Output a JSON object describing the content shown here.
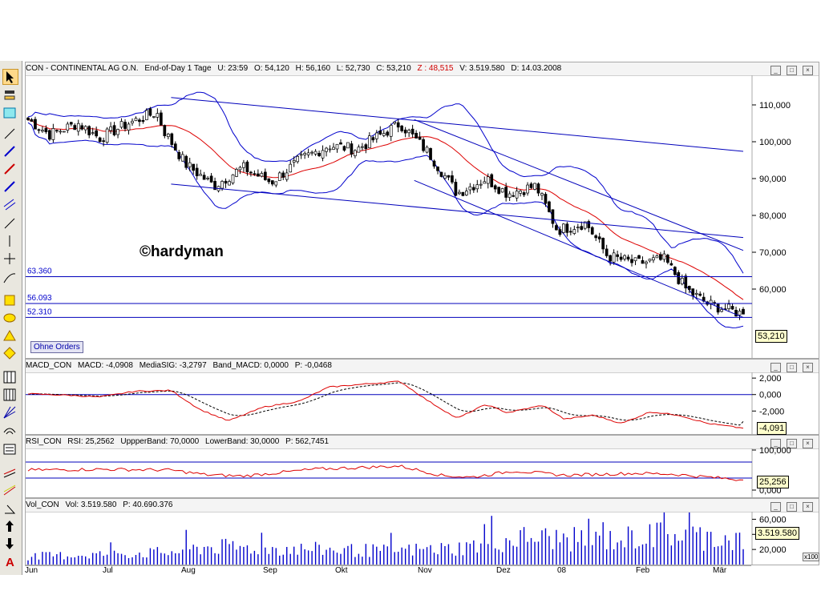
{
  "price_pane": {
    "title": {
      "symbol": "CON - CONTINENTAL AG O.N.",
      "period": "End-of-Day 1 Tage",
      "time": "U: 23:59",
      "open": "O: 54,120",
      "high": "H: 56,160",
      "low": "L: 52,730",
      "close": "C: 53,210",
      "z": "Z : 48,515",
      "volume": "V: 3.519.580",
      "date": "D: 14.03.2008"
    },
    "watermark": "©hardyman",
    "order_button": "Ohne Orders",
    "last_value": "53,210",
    "level_labels": [
      "63.360",
      "56.093",
      "52.310"
    ],
    "y_ticks": [
      "110,000",
      "100,000",
      "90,000",
      "80,000",
      "70,000",
      "60,000"
    ]
  },
  "macd_pane": {
    "title": {
      "name": "MACD_CON",
      "macd": "MACD: -4,0908",
      "signal": "MediaSIG: -3,2797",
      "band": "Band_MACD: 0,0000",
      "p": "P: -0,0468"
    },
    "last_value": "-4,091",
    "y_ticks": [
      "2,000",
      "0,000",
      "-2,000"
    ]
  },
  "rsi_pane": {
    "title": {
      "name": "RSI_CON",
      "rsi": "RSI: 25,2562",
      "upper": "UppperBand: 70,0000",
      "lower": "LowerBand: 30,0000",
      "p": "P: 562,7451"
    },
    "last_value": "25,256",
    "y_ticks": [
      "100,000",
      "0,000"
    ]
  },
  "vol_pane": {
    "title": {
      "name": "Vol_CON",
      "vol": "Vol: 3.519.580",
      "p": "P: 40.690.376"
    },
    "last_value": "3.519.580",
    "y_ticks": [
      "60,000",
      "40,000",
      "20,000"
    ],
    "scale_note": "x100"
  },
  "x_labels": [
    "Jun",
    "Jul",
    "Aug",
    "Sep",
    "Okt",
    "Nov",
    "Dez",
    "08",
    "Feb",
    "Mär"
  ],
  "colors": {
    "candle": "#000000",
    "ma": "#dd0000",
    "bands": "#0000cc",
    "trendlines": "#0000bb",
    "macd": "#dd0000",
    "signal": "#000000",
    "rsi": "#dd0000",
    "volume": "#0000cc"
  },
  "chart_data": [
    {
      "type": "candlestick",
      "title": "CON - CONTINENTAL AG O.N.",
      "x_range": [
        "2007-06",
        "2008-03-14"
      ],
      "ylim": [
        45,
        115
      ],
      "last_close": 53.21,
      "horizontal_levels": [
        63.36,
        56.093,
        52.31
      ],
      "anchors": [
        {
          "x": 0,
          "close": 106
        },
        {
          "x": 0.03,
          "close": 102
        },
        {
          "x": 0.07,
          "close": 105
        },
        {
          "x": 0.1,
          "close": 101
        },
        {
          "x": 0.14,
          "close": 105
        },
        {
          "x": 0.18,
          "close": 108
        },
        {
          "x": 0.19,
          "close": 103
        },
        {
          "x": 0.22,
          "close": 94
        },
        {
          "x": 0.26,
          "close": 88
        },
        {
          "x": 0.3,
          "close": 93
        },
        {
          "x": 0.34,
          "close": 89
        },
        {
          "x": 0.38,
          "close": 95
        },
        {
          "x": 0.42,
          "close": 99
        },
        {
          "x": 0.46,
          "close": 98
        },
        {
          "x": 0.52,
          "close": 105
        },
        {
          "x": 0.56,
          "close": 97
        },
        {
          "x": 0.6,
          "close": 86
        },
        {
          "x": 0.64,
          "close": 90
        },
        {
          "x": 0.67,
          "close": 86
        },
        {
          "x": 0.71,
          "close": 88
        },
        {
          "x": 0.74,
          "close": 76
        },
        {
          "x": 0.78,
          "close": 78
        },
        {
          "x": 0.81,
          "close": 69
        },
        {
          "x": 0.85,
          "close": 67
        },
        {
          "x": 0.89,
          "close": 68
        },
        {
          "x": 0.92,
          "close": 60
        },
        {
          "x": 0.95,
          "close": 56
        },
        {
          "x": 1,
          "close": 53.21
        }
      ]
    },
    {
      "type": "line",
      "title": "MACD_CON",
      "series": [
        {
          "name": "MACD"
        },
        {
          "name": "MediaSIG"
        }
      ],
      "ylim": [
        -4.5,
        2.5
      ],
      "last_macd": -4.0908,
      "last_signal": -3.2797,
      "anchors": [
        {
          "x": 0,
          "macd": 0.1
        },
        {
          "x": 0.06,
          "macd": -0.1
        },
        {
          "x": 0.1,
          "macd": -0.3
        },
        {
          "x": 0.15,
          "macd": 0.4
        },
        {
          "x": 0.2,
          "macd": 0.5
        },
        {
          "x": 0.24,
          "macd": -1.8
        },
        {
          "x": 0.28,
          "macd": -3.2
        },
        {
          "x": 0.33,
          "macd": -1.5
        },
        {
          "x": 0.38,
          "macd": -0.8
        },
        {
          "x": 0.42,
          "macd": 0.9
        },
        {
          "x": 0.46,
          "macd": 1.2
        },
        {
          "x": 0.52,
          "macd": 1.6
        },
        {
          "x": 0.56,
          "macd": -0.8
        },
        {
          "x": 0.6,
          "macd": -2.9
        },
        {
          "x": 0.64,
          "macd": -1.2
        },
        {
          "x": 0.67,
          "macd": -2.2
        },
        {
          "x": 0.72,
          "macd": -1.3
        },
        {
          "x": 0.75,
          "macd": -3.0
        },
        {
          "x": 0.79,
          "macd": -2.5
        },
        {
          "x": 0.83,
          "macd": -3.5
        },
        {
          "x": 0.87,
          "macd": -2.1
        },
        {
          "x": 0.91,
          "macd": -2.5
        },
        {
          "x": 0.95,
          "macd": -3.5
        },
        {
          "x": 1,
          "macd": -4.09
        }
      ]
    },
    {
      "type": "line",
      "title": "RSI_CON",
      "series": [
        {
          "name": "RSI"
        }
      ],
      "ylim": [
        0,
        100
      ],
      "bands": [
        70,
        30
      ],
      "last_value": 25.2562,
      "anchors": [
        {
          "x": 0,
          "rsi": 50
        },
        {
          "x": 0.1,
          "rsi": 52
        },
        {
          "x": 0.2,
          "rsi": 50
        },
        {
          "x": 0.25,
          "rsi": 38
        },
        {
          "x": 0.3,
          "rsi": 35
        },
        {
          "x": 0.4,
          "rsi": 52
        },
        {
          "x": 0.52,
          "rsi": 60
        },
        {
          "x": 0.58,
          "rsi": 36
        },
        {
          "x": 0.62,
          "rsi": 32
        },
        {
          "x": 0.68,
          "rsi": 48
        },
        {
          "x": 0.75,
          "rsi": 37
        },
        {
          "x": 0.85,
          "rsi": 42
        },
        {
          "x": 0.9,
          "rsi": 40
        },
        {
          "x": 1,
          "rsi": 25.26
        }
      ]
    },
    {
      "type": "bar",
      "title": "Vol_CON",
      "ylim": [
        0,
        70
      ],
      "unit": "x100",
      "last_value": 3519580,
      "anchors": [
        {
          "x": 0,
          "vol": 12
        },
        {
          "x": 0.2,
          "vol": 18
        },
        {
          "x": 0.25,
          "vol": 26
        },
        {
          "x": 0.5,
          "vol": 20
        },
        {
          "x": 0.6,
          "vol": 24
        },
        {
          "x": 0.7,
          "vol": 40
        },
        {
          "x": 0.8,
          "vol": 35
        },
        {
          "x": 0.9,
          "vol": 45
        },
        {
          "x": 1,
          "vol": 35
        }
      ]
    }
  ]
}
